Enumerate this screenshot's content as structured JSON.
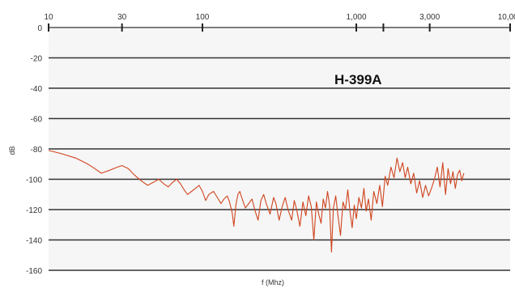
{
  "chart_data": {
    "type": "line",
    "title": "",
    "model_label": "H-399A",
    "xlabel": "f (Mhz)",
    "ylabel": "dB",
    "x_scale": "log",
    "xlim": [
      10,
      10000
    ],
    "ylim": [
      -160,
      0
    ],
    "x_ticks": [
      {
        "value": 10,
        "label": "10"
      },
      {
        "value": 30,
        "label": "30"
      },
      {
        "value": 100,
        "label": "100"
      },
      {
        "value": 1000,
        "label": "1,000"
      },
      {
        "value": 1500,
        "label": ""
      },
      {
        "value": 3000,
        "label": "3,000"
      },
      {
        "value": 10000,
        "label": "10,000"
      }
    ],
    "y_ticks": [
      0,
      -20,
      -40,
      -60,
      -80,
      -100,
      -120,
      -140,
      -160
    ],
    "y_tick_labels": [
      "0",
      "-20",
      "-40",
      "-60",
      "-80",
      "-100",
      "-120",
      "-140",
      "-160"
    ],
    "grid": {
      "horizontal": true,
      "vertical": false
    },
    "colors": {
      "line": "#d0441e",
      "grid": "#333333",
      "background": "#f6f6f6"
    },
    "series": [
      {
        "name": "",
        "points": [
          [
            10,
            -81
          ],
          [
            12,
            -83
          ],
          [
            15,
            -86
          ],
          [
            18,
            -90
          ],
          [
            20,
            -93
          ],
          [
            22,
            -96
          ],
          [
            25,
            -94
          ],
          [
            28,
            -92
          ],
          [
            30,
            -91
          ],
          [
            33,
            -93
          ],
          [
            36,
            -97
          ],
          [
            40,
            -101
          ],
          [
            44,
            -104
          ],
          [
            48,
            -102
          ],
          [
            52,
            -100
          ],
          [
            56,
            -103
          ],
          [
            60,
            -105
          ],
          [
            64,
            -102
          ],
          [
            68,
            -100
          ],
          [
            72,
            -103
          ],
          [
            76,
            -107
          ],
          [
            80,
            -110
          ],
          [
            85,
            -108
          ],
          [
            90,
            -106
          ],
          [
            95,
            -104
          ],
          [
            100,
            -108
          ],
          [
            105,
            -114
          ],
          [
            110,
            -110
          ],
          [
            118,
            -108
          ],
          [
            125,
            -112
          ],
          [
            132,
            -116
          ],
          [
            138,
            -113
          ],
          [
            145,
            -111
          ],
          [
            150,
            -115
          ],
          [
            156,
            -122
          ],
          [
            160,
            -131
          ],
          [
            165,
            -117
          ],
          [
            170,
            -110
          ],
          [
            175,
            -108
          ],
          [
            180,
            -112
          ],
          [
            190,
            -119
          ],
          [
            200,
            -116
          ],
          [
            210,
            -113
          ],
          [
            220,
            -121
          ],
          [
            230,
            -127
          ],
          [
            240,
            -114
          ],
          [
            250,
            -110
          ],
          [
            260,
            -116
          ],
          [
            275,
            -123
          ],
          [
            290,
            -112
          ],
          [
            300,
            -116
          ],
          [
            315,
            -127
          ],
          [
            330,
            -118
          ],
          [
            345,
            -112
          ],
          [
            360,
            -120
          ],
          [
            380,
            -127
          ],
          [
            395,
            -114
          ],
          [
            410,
            -120
          ],
          [
            430,
            -131
          ],
          [
            450,
            -115
          ],
          [
            470,
            -124
          ],
          [
            490,
            -111
          ],
          [
            510,
            -118
          ],
          [
            530,
            -140
          ],
          [
            550,
            -115
          ],
          [
            570,
            -123
          ],
          [
            590,
            -129
          ],
          [
            610,
            -113
          ],
          [
            630,
            -119
          ],
          [
            650,
            -108
          ],
          [
            670,
            -117
          ],
          [
            690,
            -148
          ],
          [
            710,
            -119
          ],
          [
            735,
            -111
          ],
          [
            760,
            -124
          ],
          [
            790,
            -137
          ],
          [
            820,
            -115
          ],
          [
            850,
            -120
          ],
          [
            880,
            -107
          ],
          [
            910,
            -121
          ],
          [
            940,
            -132
          ],
          [
            970,
            -117
          ],
          [
            1000,
            -126
          ],
          [
            1040,
            -112
          ],
          [
            1080,
            -119
          ],
          [
            1120,
            -106
          ],
          [
            1160,
            -121
          ],
          [
            1200,
            -113
          ],
          [
            1250,
            -127
          ],
          [
            1300,
            -108
          ],
          [
            1360,
            -116
          ],
          [
            1420,
            -104
          ],
          [
            1480,
            -118
          ],
          [
            1540,
            -98
          ],
          [
            1600,
            -104
          ],
          [
            1680,
            -92
          ],
          [
            1760,
            -99
          ],
          [
            1840,
            -86
          ],
          [
            1920,
            -95
          ],
          [
            2000,
            -89
          ],
          [
            2080,
            -99
          ],
          [
            2160,
            -92
          ],
          [
            2260,
            -103
          ],
          [
            2360,
            -96
          ],
          [
            2470,
            -109
          ],
          [
            2580,
            -101
          ],
          [
            2700,
            -112
          ],
          [
            2820,
            -104
          ],
          [
            2950,
            -111
          ],
          [
            3080,
            -106
          ],
          [
            3220,
            -100
          ],
          [
            3360,
            -92
          ],
          [
            3500,
            -105
          ],
          [
            3650,
            -89
          ],
          [
            3800,
            -110
          ],
          [
            3950,
            -93
          ],
          [
            4100,
            -103
          ],
          [
            4250,
            -95
          ],
          [
            4400,
            -106
          ],
          [
            4550,
            -97
          ],
          [
            4700,
            -94
          ],
          [
            4850,
            -101
          ],
          [
            5000,
            -96
          ]
        ]
      }
    ]
  }
}
